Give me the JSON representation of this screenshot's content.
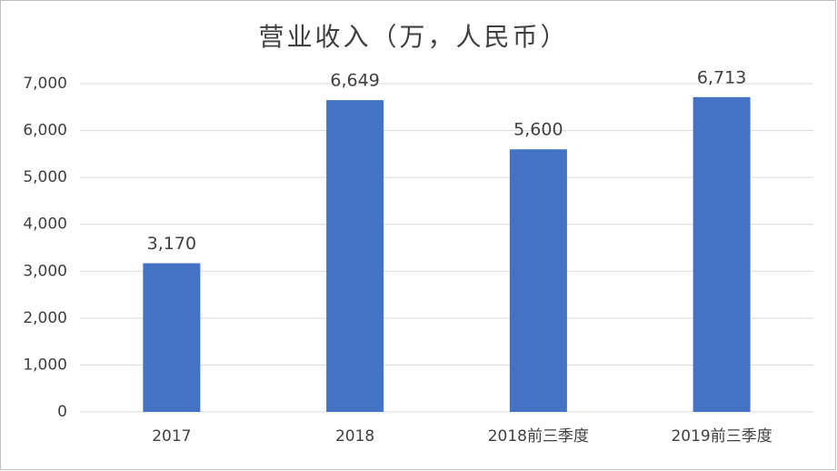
{
  "chart_data": {
    "type": "bar",
    "title": "营业收入（万，人民币）",
    "categories": [
      "2017",
      "2018",
      "2018前三季度",
      "2019前三季度"
    ],
    "values": [
      3170,
      6649,
      5600,
      6713
    ],
    "value_labels": [
      "3,170",
      "6,649",
      "5,600",
      "6,713"
    ],
    "color": "#4472c4",
    "ylim": [
      0,
      7000
    ],
    "yticks": [
      0,
      {
        "value": 1000,
        "label": "1,000"
      },
      {
        "value": 2000,
        "label": "2,000"
      },
      {
        "value": 3000,
        "label": "3,000"
      },
      {
        "value": 4000,
        "label": "4,000"
      },
      {
        "value": 5000,
        "label": "5,000"
      },
      {
        "value": 6000,
        "label": "6,000"
      },
      {
        "value": 7000,
        "label": "7,000"
      }
    ],
    "grid": true
  }
}
